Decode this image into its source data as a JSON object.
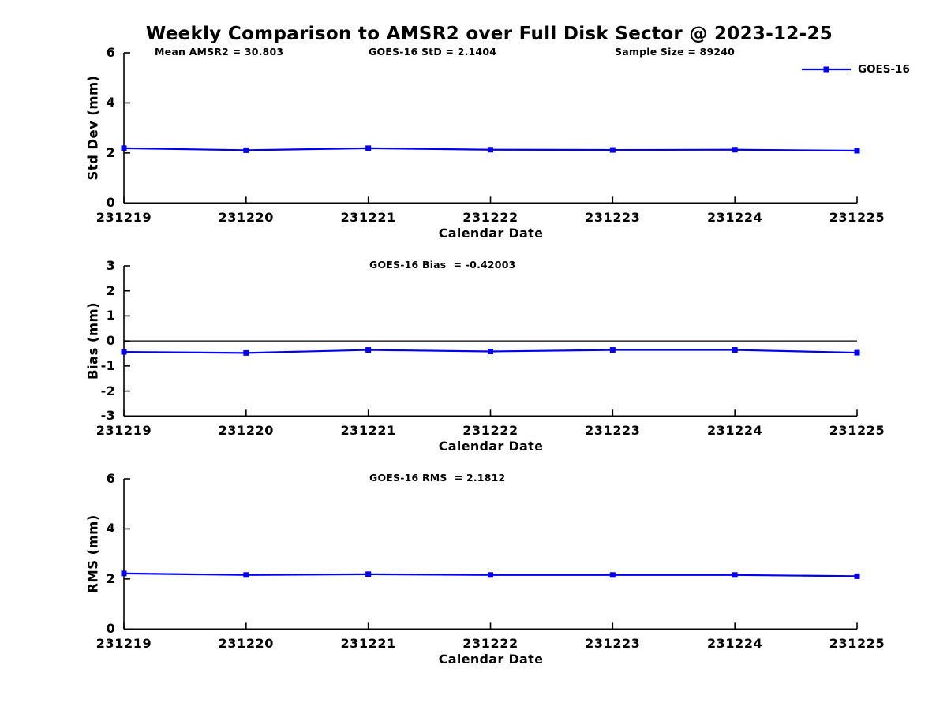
{
  "title": "Weekly Comparison to AMSR2 over Full Disk Sector @ 2023-12-25",
  "legend": {
    "label": "GOES-16"
  },
  "colors": {
    "series": "#0000ee",
    "axis": "#000000",
    "text": "#000000",
    "background": "#ffffff"
  },
  "chart_data": {
    "type": "line",
    "x_categories": [
      "231219",
      "231220",
      "231221",
      "231222",
      "231223",
      "231224",
      "231225"
    ],
    "xlabel": "Calendar Date",
    "series_name": "GOES-16",
    "marker": "square",
    "grid": false,
    "legend_position": "top-right-outside",
    "subplots": [
      {
        "id": "std-dev",
        "ylabel": "Std Dev (mm)",
        "ylim": [
          0,
          6
        ],
        "yticks": [
          0,
          2,
          4,
          6
        ],
        "values": [
          2.19,
          2.11,
          2.19,
          2.13,
          2.12,
          2.13,
          2.09
        ],
        "zero_line": false,
        "annotations": [
          "Mean AMSR2 = 30.803",
          "GOES-16 StD = 2.1404",
          "Sample Size = 89240"
        ]
      },
      {
        "id": "bias",
        "ylabel": "Bias (mm)",
        "ylim": [
          -3,
          3
        ],
        "yticks": [
          -3,
          -2,
          -1,
          0,
          1,
          2,
          3
        ],
        "values": [
          -0.44,
          -0.48,
          -0.36,
          -0.42,
          -0.36,
          -0.36,
          -0.47
        ],
        "zero_line": true,
        "annotations": [
          "GOES-16 Bias  = -0.42003"
        ]
      },
      {
        "id": "rms",
        "ylabel": "RMS (mm)",
        "ylim": [
          0,
          6
        ],
        "yticks": [
          0,
          2,
          4,
          6
        ],
        "values": [
          2.22,
          2.16,
          2.19,
          2.16,
          2.16,
          2.16,
          2.11
        ],
        "zero_line": false,
        "annotations": [
          "GOES-16 RMS  = 2.1812"
        ]
      }
    ]
  }
}
